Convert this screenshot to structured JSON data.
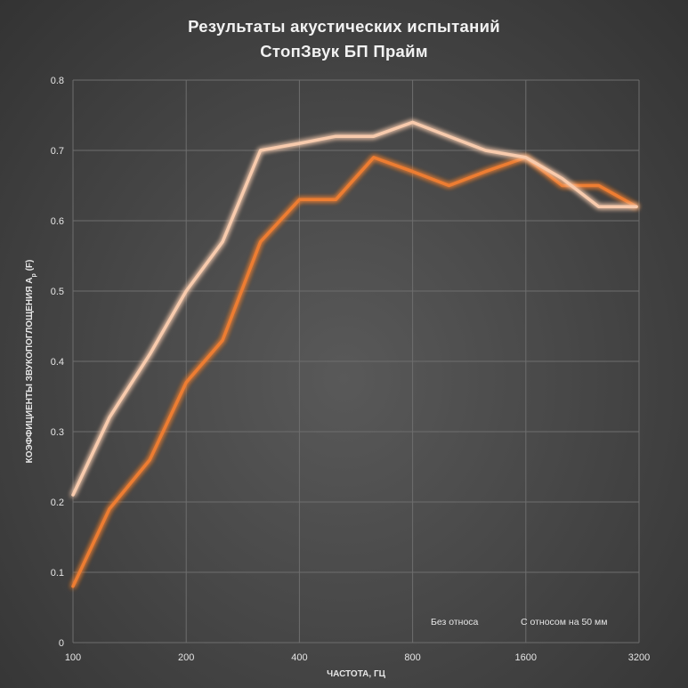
{
  "chart_data": {
    "type": "line",
    "title": "Результаты акустических испытаний",
    "subtitle": "СтопЗвук БП Прайм",
    "xlabel": "ЧАСТОТА, ГЦ",
    "ylabel": "КОЭФФИЦИЕНТЫ ЗВУКОПОГЛОЩЕНИЯ",
    "ylabel_symbol": "A",
    "ylabel_subscript": "p",
    "ylabel_suffix": " (F)",
    "x": [
      100,
      125,
      160,
      200,
      250,
      315,
      400,
      500,
      630,
      800,
      1000,
      1250,
      1600,
      2000,
      2500,
      3150
    ],
    "x_scale": "log",
    "x_tick_labels": [
      "100",
      "200",
      "400",
      "800",
      "1600",
      "3200"
    ],
    "x_ticks": [
      100,
      200,
      400,
      800,
      1600,
      3200
    ],
    "xlim": [
      100,
      3200
    ],
    "ylim": [
      0,
      0.8
    ],
    "y_ticks": [
      0,
      0.1,
      0.2,
      0.3,
      0.4,
      0.5,
      0.6,
      0.7,
      0.8
    ],
    "y_tick_labels": [
      "0",
      "0.1",
      "0.2",
      "0.3",
      "0.4",
      "0.5",
      "0.6",
      "0.7",
      "0.8"
    ],
    "grid": true,
    "legend_position": "bottom-right",
    "series": [
      {
        "name": "Без относа",
        "color": "#ed7d31",
        "values": [
          0.08,
          0.19,
          0.26,
          0.37,
          0.43,
          0.57,
          0.63,
          0.63,
          0.69,
          0.67,
          0.65,
          0.67,
          0.69,
          0.65,
          0.65,
          0.62
        ]
      },
      {
        "name": "С относом на 50 мм",
        "color": "#f8cbad",
        "values": [
          0.21,
          0.32,
          0.41,
          0.5,
          0.57,
          0.7,
          0.71,
          0.72,
          0.72,
          0.74,
          0.72,
          0.7,
          0.69,
          0.66,
          0.62,
          0.62
        ]
      }
    ]
  }
}
